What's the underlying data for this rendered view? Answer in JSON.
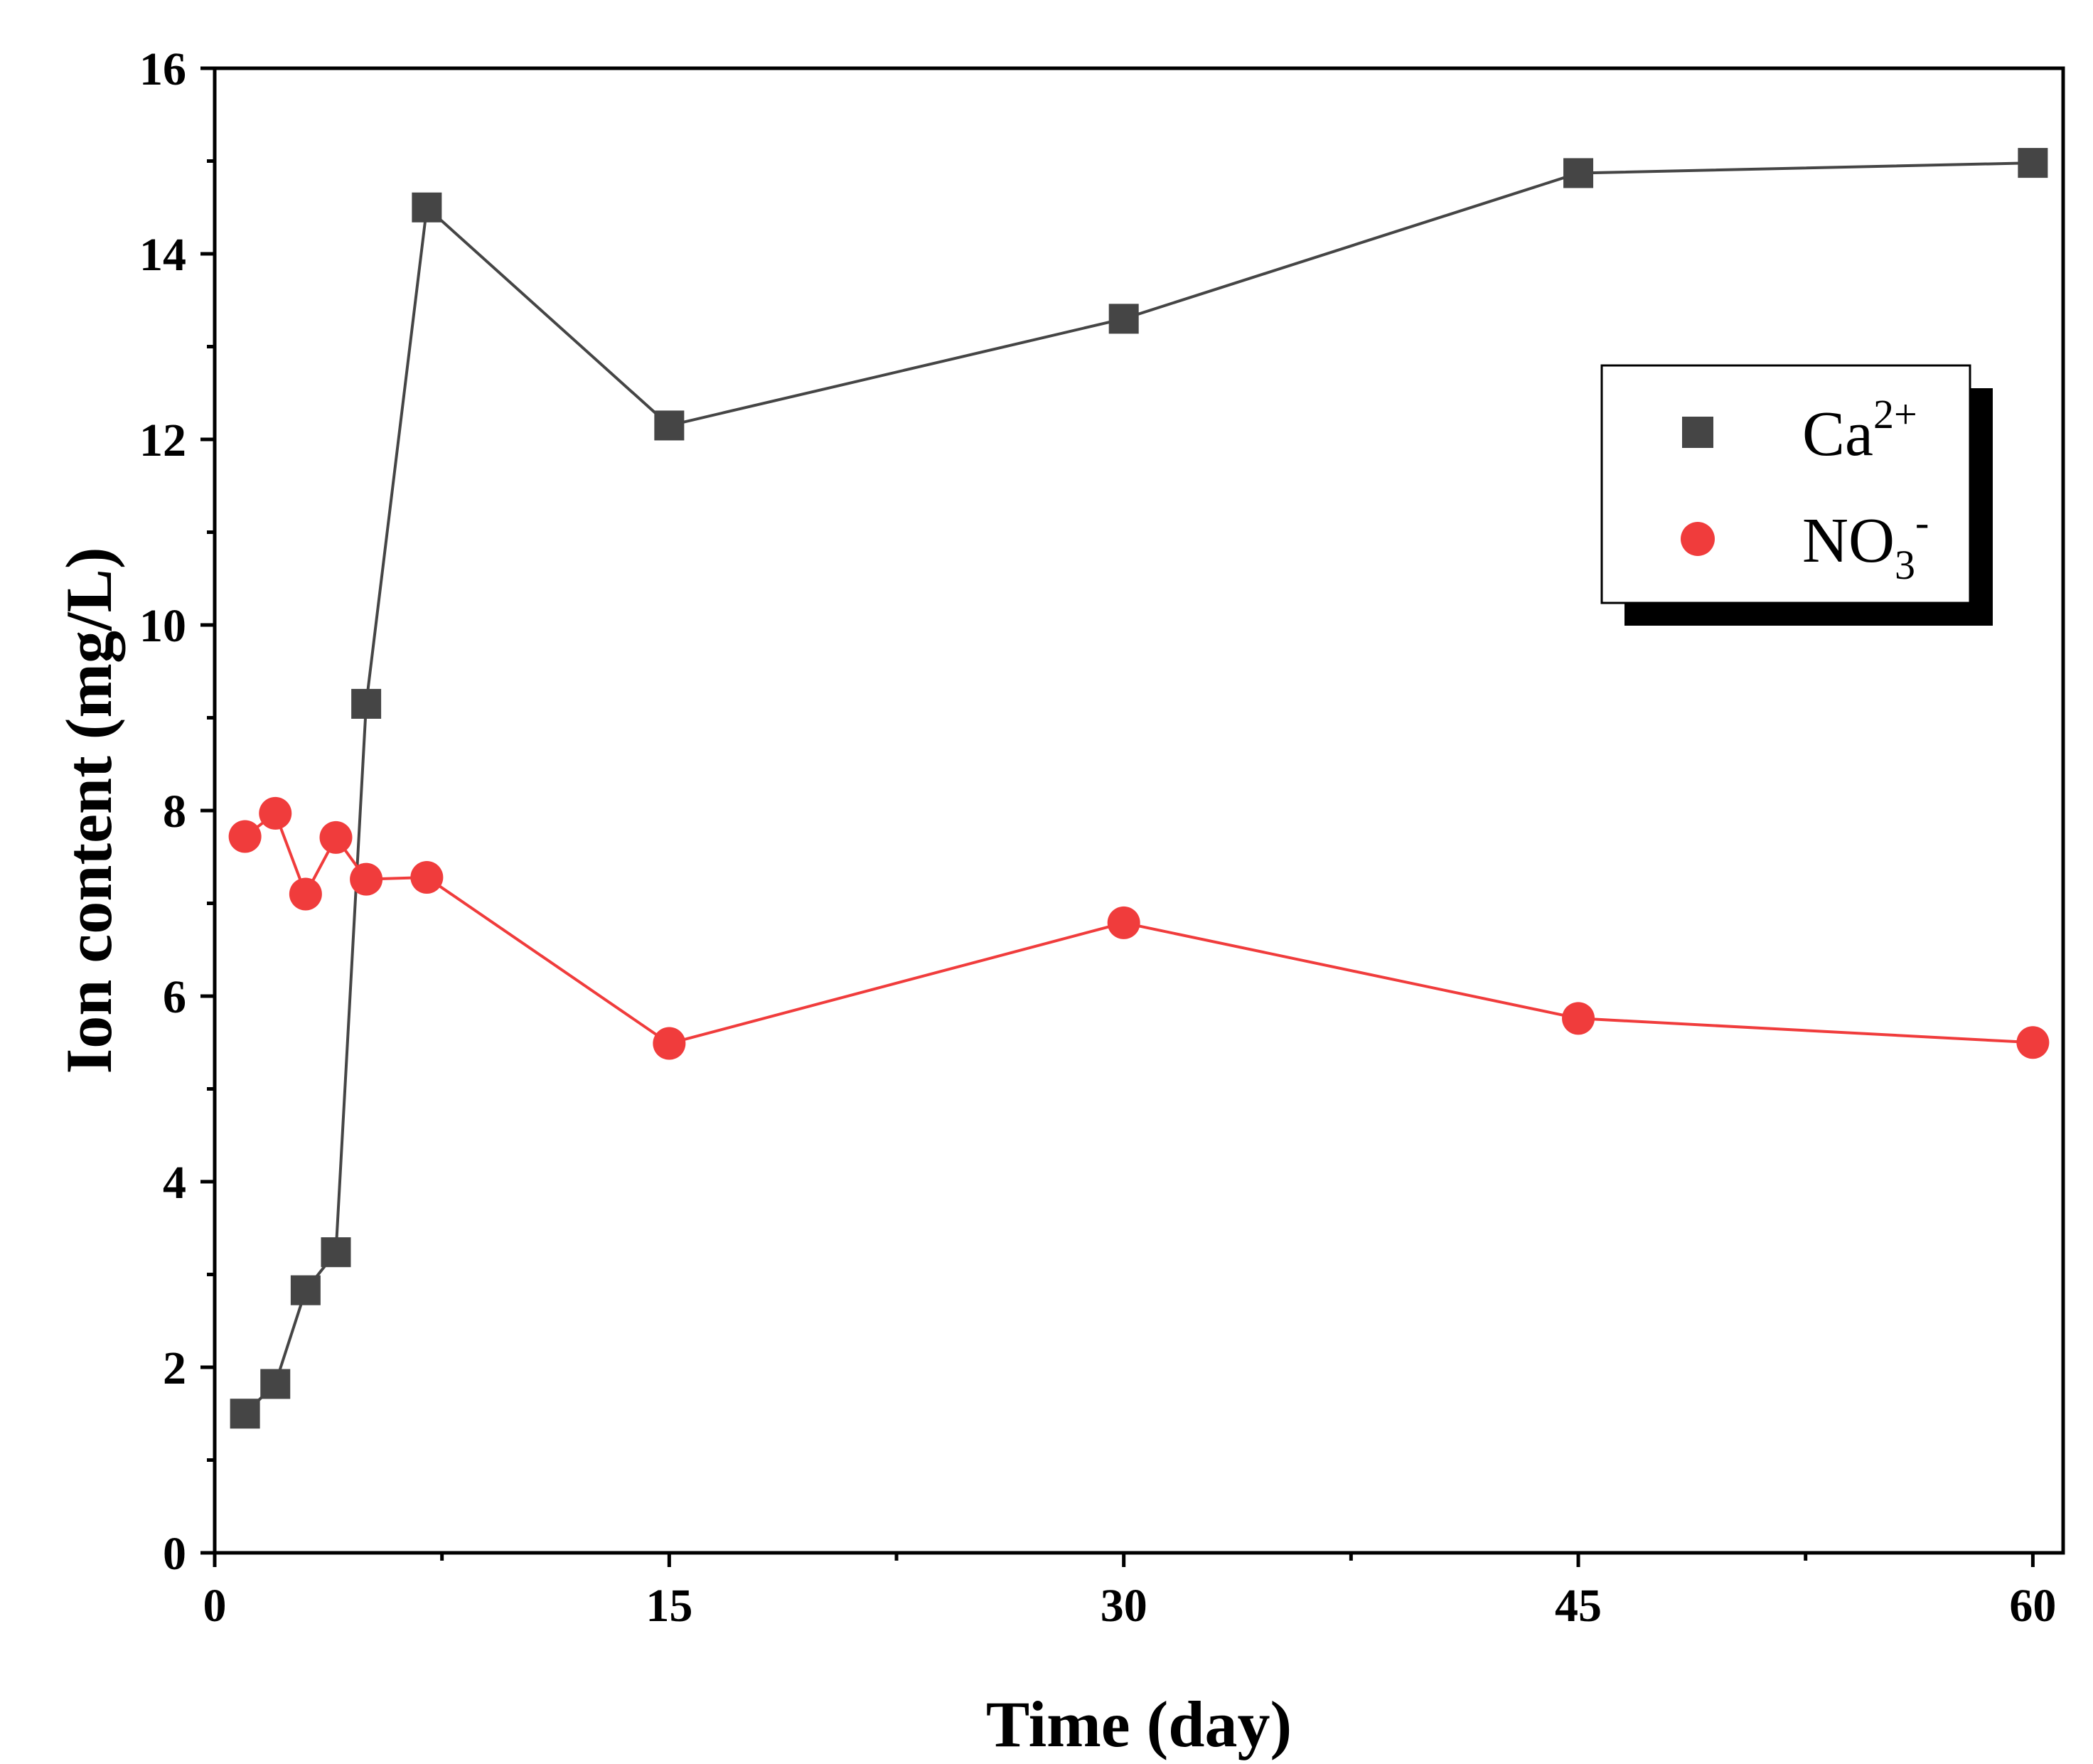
{
  "chart_data": {
    "type": "line",
    "title": "",
    "xlabel": "Time (day)",
    "ylabel": "Ion content (mg/L)",
    "xlim": [
      0,
      61
    ],
    "ylim": [
      0,
      16
    ],
    "xticks": [
      0,
      15,
      30,
      45,
      60
    ],
    "xtick_labels": [
      "0",
      "15",
      "30",
      "45",
      "60"
    ],
    "yticks": [
      0,
      2,
      4,
      6,
      8,
      10,
      12,
      14,
      16
    ],
    "ytick_labels": [
      "0",
      "2",
      "4",
      "6",
      "8",
      "10",
      "12",
      "14",
      "16"
    ],
    "grid": false,
    "legend_position": "top-right",
    "series": [
      {
        "name": "Ca2+",
        "label_base": "Ca",
        "label_sup": "2+",
        "marker": "square",
        "color": "#454545",
        "x": [
          1,
          2,
          3,
          4,
          5,
          7,
          15,
          30,
          45,
          60
        ],
        "y": [
          1.5,
          1.82,
          2.83,
          3.24,
          9.15,
          14.5,
          12.15,
          13.3,
          14.87,
          14.98
        ]
      },
      {
        "name": "NO3-",
        "label_base": "NO",
        "label_sub": "3",
        "label_sup": "-",
        "marker": "circle",
        "color": "#f03c3c",
        "x": [
          1,
          2,
          3,
          4,
          5,
          7,
          15,
          30,
          45,
          60
        ],
        "y": [
          7.72,
          7.97,
          7.1,
          7.71,
          7.26,
          7.28,
          5.49,
          6.79,
          5.76,
          5.5
        ]
      }
    ]
  }
}
